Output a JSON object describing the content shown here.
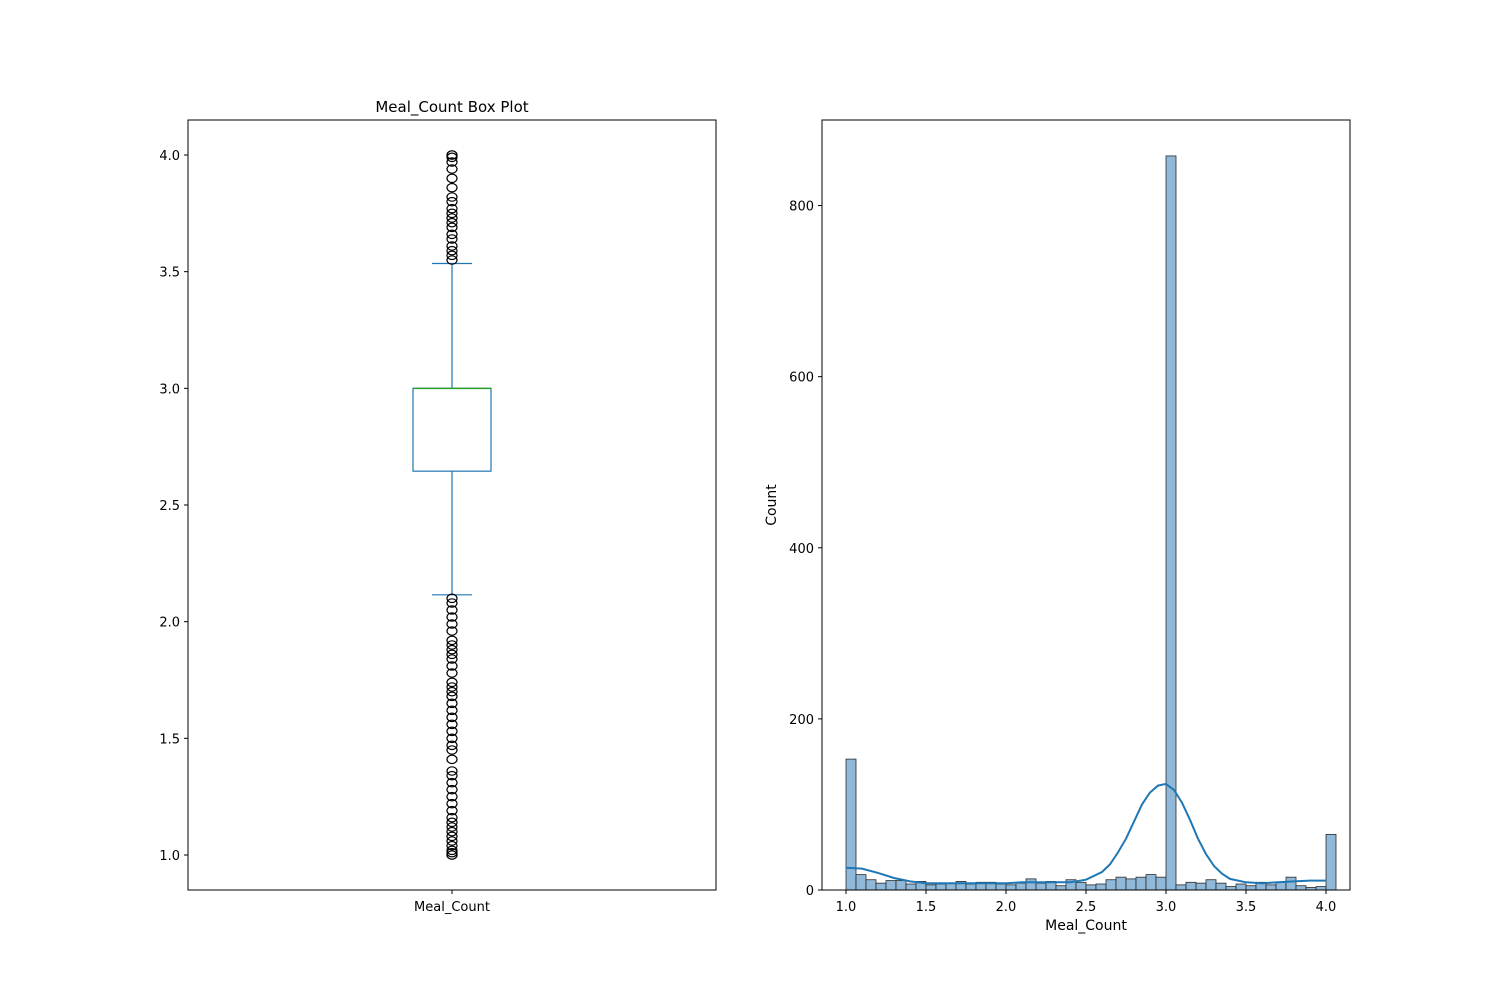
{
  "chart_data": [
    {
      "type": "box",
      "title": "Meal_Count Box Plot",
      "categories": [
        "Meal_Count"
      ],
      "box": {
        "q1": 2.645,
        "median": 3.0,
        "q3": 3.0,
        "whisker_low": 2.115,
        "whisker_high": 3.535
      },
      "outliers_high": [
        3.55,
        3.57,
        3.59,
        3.61,
        3.64,
        3.66,
        3.69,
        3.71,
        3.73,
        3.75,
        3.77,
        3.8,
        3.82,
        3.86,
        3.9,
        3.94,
        3.97,
        3.99,
        4.0,
        4.0
      ],
      "outliers_low": [
        1.0,
        1.0,
        1.01,
        1.02,
        1.04,
        1.06,
        1.08,
        1.1,
        1.12,
        1.14,
        1.16,
        1.19,
        1.22,
        1.25,
        1.28,
        1.31,
        1.34,
        1.36,
        1.41,
        1.45,
        1.47,
        1.5,
        1.53,
        1.56,
        1.59,
        1.62,
        1.65,
        1.68,
        1.7,
        1.72,
        1.74,
        1.78,
        1.81,
        1.84,
        1.86,
        1.88,
        1.9,
        1.92,
        1.96,
        1.99,
        2.02,
        2.05,
        2.08,
        2.1
      ],
      "ylim": [
        0.85,
        4.15
      ],
      "yticks": [
        "1.0",
        "1.5",
        "2.0",
        "2.5",
        "3.0",
        "3.5",
        "4.0"
      ],
      "colors": {
        "box": "#1f77b4",
        "median": "#2ca02c",
        "outlier": "#000000"
      }
    },
    {
      "type": "bar",
      "subtype": "histogram_with_kde",
      "xlabel": "Meal_Count",
      "ylabel": "Count",
      "xlim": [
        0.85,
        4.15
      ],
      "ylim": [
        0,
        900
      ],
      "xticks": [
        "1.0",
        "1.5",
        "2.0",
        "2.5",
        "3.0",
        "3.5",
        "4.0"
      ],
      "yticks": [
        "0",
        "200",
        "400",
        "600",
        "800"
      ],
      "bin_start": 1.0,
      "bin_width": 0.0625,
      "values": [
        153,
        18,
        12,
        8,
        11,
        11,
        7,
        10,
        6,
        7,
        8,
        10,
        7,
        9,
        9,
        7,
        6,
        8,
        13,
        8,
        10,
        5,
        12,
        9,
        6,
        7,
        12,
        15,
        13,
        15,
        18,
        15,
        858,
        6,
        9,
        8,
        12,
        8,
        4,
        7,
        5,
        9,
        6,
        9,
        15,
        5,
        3,
        4,
        65
      ],
      "kde": {
        "x": [
          1.0,
          1.1,
          1.2,
          1.3,
          1.4,
          1.5,
          1.6,
          1.7,
          1.8,
          1.9,
          2.0,
          2.1,
          2.2,
          2.3,
          2.4,
          2.5,
          2.6,
          2.65,
          2.7,
          2.75,
          2.8,
          2.85,
          2.9,
          2.95,
          3.0,
          3.05,
          3.1,
          3.15,
          3.2,
          3.25,
          3.3,
          3.35,
          3.4,
          3.5,
          3.6,
          3.7,
          3.8,
          3.9,
          4.0
        ],
        "y": [
          26,
          25,
          20,
          14,
          10,
          8,
          8,
          8,
          8,
          8,
          8,
          9,
          9,
          9,
          9,
          12,
          21,
          30,
          44,
          60,
          80,
          100,
          114,
          122,
          124,
          117,
          102,
          82,
          60,
          42,
          28,
          19,
          13,
          9,
          8,
          9,
          10,
          11,
          11
        ]
      },
      "colors": {
        "bar": "#8fb8d9",
        "bar_edge": "#2b2b2b",
        "kde": "#1f77b4"
      }
    }
  ]
}
